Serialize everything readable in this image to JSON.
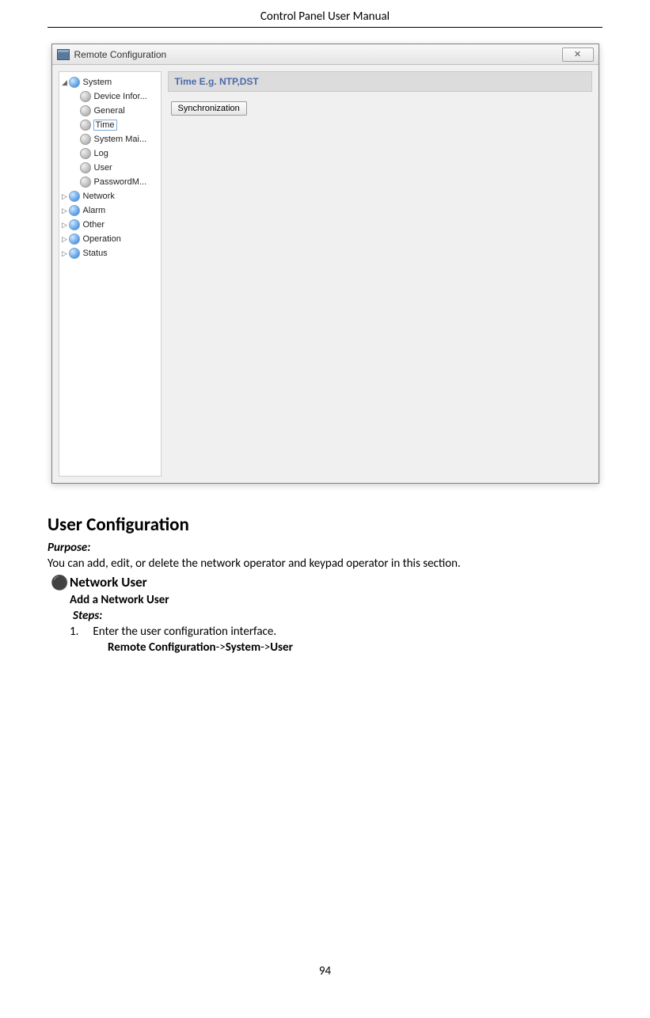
{
  "header": {
    "title": "Control Panel User Manual"
  },
  "footer": {
    "page_number": "94"
  },
  "window": {
    "title": "Remote Configuration",
    "close_glyph": "✕",
    "section_header": "Time E.g. NTP,DST",
    "sync_button_label": "Synchronization",
    "tree": {
      "system": {
        "label": "System",
        "expander": "◢"
      },
      "children": [
        {
          "label": "Device Infor..."
        },
        {
          "label": "General"
        },
        {
          "label": "Time"
        },
        {
          "label": "System Mai..."
        },
        {
          "label": "Log"
        },
        {
          "label": "User"
        },
        {
          "label": "PasswordM..."
        }
      ],
      "siblings": [
        {
          "label": "Network",
          "expander": "▷"
        },
        {
          "label": "Alarm",
          "expander": "▷"
        },
        {
          "label": "Other",
          "expander": "▷"
        },
        {
          "label": "Operation",
          "expander": "▷"
        },
        {
          "label": "Status",
          "expander": "▷"
        }
      ]
    }
  },
  "doc": {
    "h2": "User Configuration",
    "purpose_label": "Purpose:",
    "purpose_text": "You can add, edit, or delete the network operator and keypad operator in this section.",
    "bullet_marker": "⚫",
    "h3": "Network User",
    "h4": "Add a Network User",
    "steps_label": "Steps:",
    "step1_num": "1.",
    "step1_text": "Enter the user configuration interface.",
    "nav_a": "Remote Configuration",
    "nav_sep1": "->",
    "nav_b": "System",
    "nav_sep2": "->",
    "nav_c": "User"
  }
}
